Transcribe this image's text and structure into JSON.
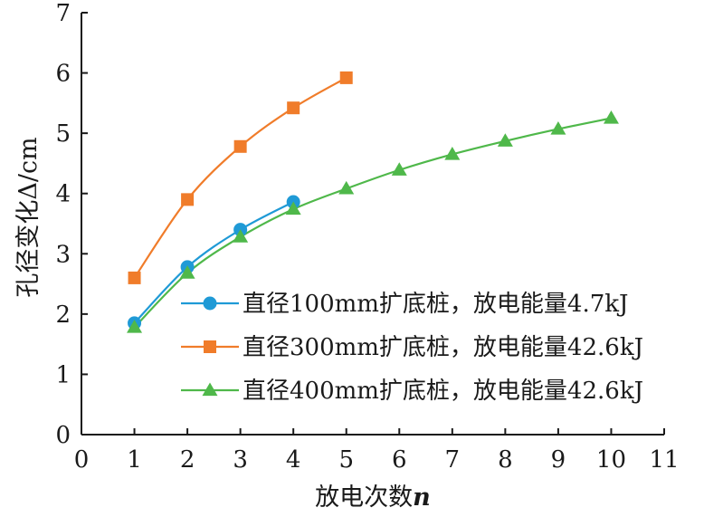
{
  "chart_data": {
    "type": "line",
    "xlabel": "放电次数",
    "xlabel_var": "n",
    "ylabel": "孔径变化Δ/cm",
    "xlim": [
      0,
      11
    ],
    "ylim": [
      0,
      7
    ],
    "xticks": [
      "0",
      "1",
      "2",
      "3",
      "4",
      "5",
      "6",
      "7",
      "8",
      "9",
      "10",
      "11"
    ],
    "yticks": [
      "0",
      "1",
      "2",
      "3",
      "4",
      "5",
      "6",
      "7"
    ],
    "grid": false,
    "legend_position": "bottom-right",
    "series": [
      {
        "name": "直径100mm扩底桩，放电能量4.7kJ",
        "color": "#1f9ad6",
        "marker": "circle",
        "x": [
          1,
          2,
          3,
          4
        ],
        "y": [
          1.85,
          2.78,
          3.4,
          3.86
        ]
      },
      {
        "name": "直径300mm扩底桩，放电能量42.6kJ",
        "color": "#f07c2a",
        "marker": "square",
        "x": [
          1,
          2,
          3,
          4,
          5
        ],
        "y": [
          2.6,
          3.9,
          4.78,
          5.42,
          5.92
        ]
      },
      {
        "name": "直径400mm扩底桩，放电能量42.6kJ",
        "color": "#4fb84a",
        "marker": "triangle",
        "x": [
          1,
          2,
          3,
          4,
          5,
          6,
          7,
          8,
          9,
          10
        ],
        "y": [
          1.78,
          2.68,
          3.28,
          3.74,
          4.08,
          4.39,
          4.65,
          4.87,
          5.07,
          5.25
        ]
      }
    ]
  }
}
